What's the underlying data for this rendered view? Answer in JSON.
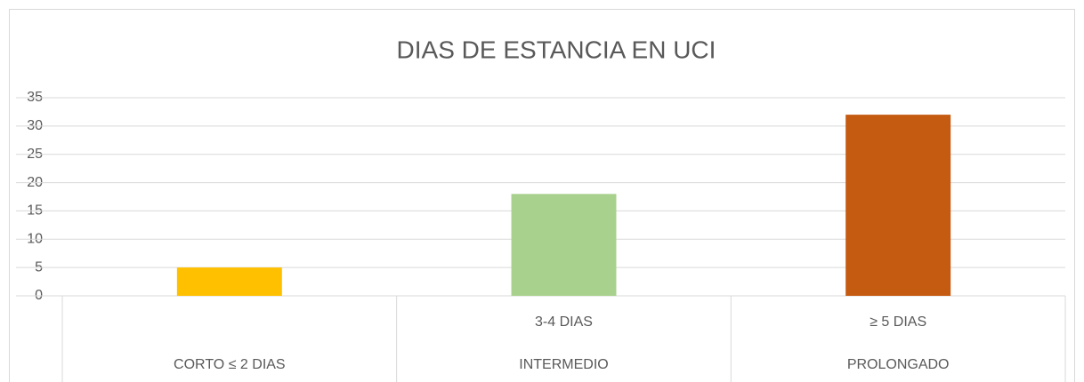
{
  "chart_data": {
    "type": "bar",
    "title": "DIAS DE ESTANCIA EN UCI",
    "categories": [
      "CORTO ≤ 2 DIAS",
      "INTERMEDIO",
      "PROLONGADO"
    ],
    "subcategories": [
      null,
      "3-4 DIAS",
      "≥ 5 DIAS"
    ],
    "values": [
      5,
      18,
      32
    ],
    "colors": [
      "#FFC000",
      "#A9D18E",
      "#C55A11"
    ],
    "ylim": [
      0,
      35
    ],
    "yticks": [
      0,
      5,
      10,
      15,
      20,
      25,
      30,
      35
    ],
    "grid": true
  }
}
